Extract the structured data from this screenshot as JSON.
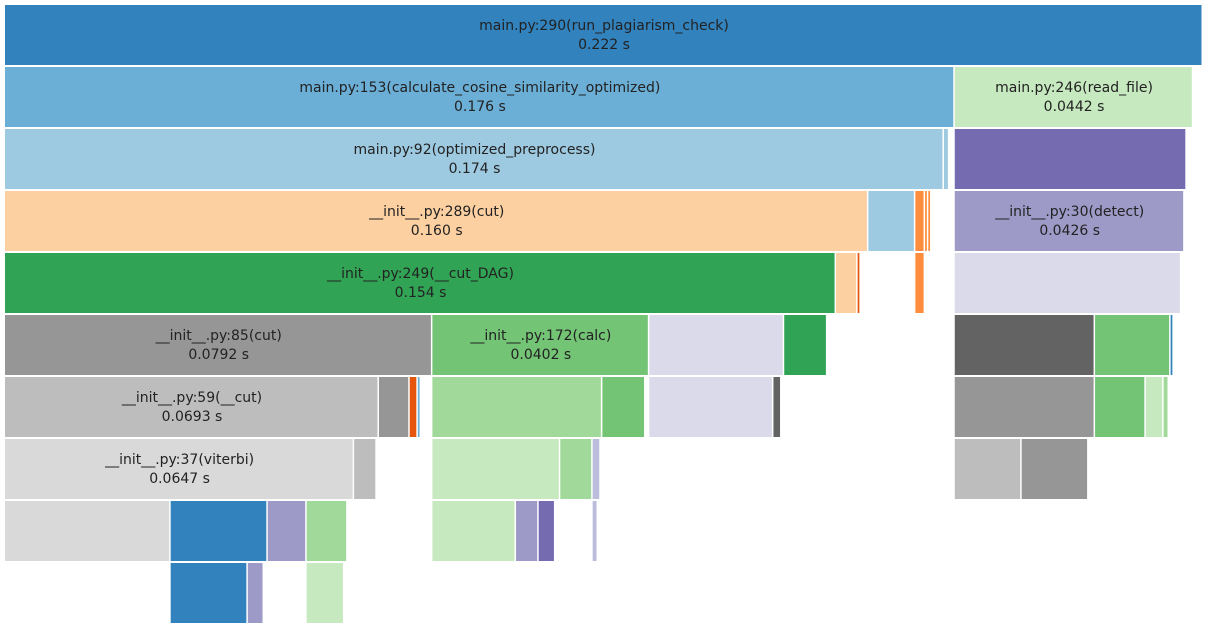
{
  "chart_data": {
    "type": "icicle",
    "root": {
      "name": "main.py:290(run_plagiarism_check)",
      "value": 0.222,
      "value_label": "0.222 s",
      "color": "#3182bd",
      "children": [
        {
          "name": "main.py:153(calculate_cosine_similarity_optimized)",
          "value": 0.176,
          "value_label": "0.176 s",
          "color": "#6baed6",
          "children": [
            {
              "name": "main.py:92(optimized_preprocess)",
              "value": 0.174,
              "value_label": "0.174 s",
              "color": "#9ecae1",
              "children": [
                {
                  "name": "__init__.py:289(cut)",
                  "value": 0.16,
                  "value_label": "0.160 s",
                  "color": "#fdd0a2",
                  "children": [
                    {
                      "name": "__init__.py:249(__cut_DAG)",
                      "value": 0.154,
                      "value_label": "0.154 s",
                      "color": "#31a354",
                      "children": [
                        {
                          "name": "__init__.py:85(cut)",
                          "value": 0.0792,
                          "value_label": "0.0792 s",
                          "color": "#969696",
                          "children": [
                            {
                              "name": "__init__.py:59(__cut)",
                              "value": 0.0693,
                              "value_label": "0.0693 s",
                              "color": "#bdbdbd",
                              "children": [
                                {
                                  "name": "__init__.py:37(viterbi)",
                                  "value": 0.0647,
                                  "value_label": "0.0647 s",
                                  "color": "#d9d9d9",
                                  "children": [
                                    {
                                      "value": 0.0307,
                                      "color": "#d9d9d9"
                                    },
                                    {
                                      "value": 0.018,
                                      "color": "#3182bd",
                                      "children": [
                                        {
                                          "value": 0.0143,
                                          "color": "#3182bd"
                                        },
                                        {
                                          "value": 0.003,
                                          "color": "#9e9ac8"
                                        }
                                      ]
                                    },
                                    {
                                      "value": 0.0072,
                                      "color": "#9e9ac8"
                                    },
                                    {
                                      "value": 0.0076,
                                      "color": "#a1d99b",
                                      "children": [
                                        {
                                          "value": 0.007,
                                          "color": "#c7e9c0"
                                        }
                                      ]
                                    }
                                  ]
                                },
                                {
                                  "value": 0.0042,
                                  "color": "#bdbdbd"
                                }
                              ]
                            },
                            {
                              "value": 0.0057,
                              "color": "#969696"
                            },
                            {
                              "value": 0.0015,
                              "color": "#e6550d"
                            },
                            {
                              "value": 0.0006,
                              "color": "#6baed6"
                            }
                          ]
                        },
                        {
                          "name": "__init__.py:172(calc)",
                          "value": 0.0402,
                          "value_label": "0.0402 s",
                          "color": "#74c476",
                          "children": [
                            {
                              "value": 0.0315,
                              "color": "#a1d99b",
                              "children": [
                                {
                                  "value": 0.0237,
                                  "color": "#c7e9c0",
                                  "children": [
                                    {
                                      "value": 0.0155,
                                      "color": "#c7e9c0"
                                    },
                                    {
                                      "value": 0.0042,
                                      "color": "#9e9ac8"
                                    },
                                    {
                                      "value": 0.0031,
                                      "color": "#756bb1"
                                    }
                                  ]
                                },
                                {
                                  "value": 0.006,
                                  "color": "#a1d99b"
                                },
                                {
                                  "value": 0.0015,
                                  "color": "#bcbddc",
                                  "children": [
                                    {
                                      "value": 0.001,
                                      "color": "#bcbddc"
                                    }
                                  ]
                                }
                              ]
                            },
                            {
                              "value": 0.008,
                              "color": "#74c476"
                            }
                          ]
                        },
                        {
                          "value": 0.025,
                          "color": "#dadaeb",
                          "children": [
                            {
                              "value": 0.023,
                              "color": "#dadaeb"
                            },
                            {
                              "value": 0.0015,
                              "color": "#636363"
                            }
                          ]
                        },
                        {
                          "value": 0.008,
                          "color": "#31a354"
                        }
                      ]
                    },
                    {
                      "value": 0.004,
                      "color": "#fdd0a2"
                    },
                    {
                      "value": 0.0006,
                      "color": "#e6550d"
                    }
                  ]
                },
                {
                  "value": 0.0087,
                  "color": "#9ecae1"
                },
                {
                  "value": 0.0018,
                  "color": "#fd8d3c",
                  "children": [
                    {
                      "value": 0.0018,
                      "color": "#fd8d3c"
                    }
                  ]
                },
                {
                  "value": 0.0006,
                  "color": "#fd8d3c"
                },
                {
                  "value": 0.0006,
                  "color": "#fd8d3c"
                }
              ]
            },
            {
              "value": 0.001,
              "color": "#9ecae1"
            }
          ]
        },
        {
          "name": "main.py:246(read_file)",
          "value": 0.0442,
          "value_label": "0.0442 s",
          "color": "#c7e9c0",
          "children": [
            {
              "value": 0.043,
              "color": "#756bb1",
              "children": [
                {
                  "name": "__init__.py:30(detect)",
                  "value": 0.0426,
                  "value_label": "0.0426 s",
                  "color": "#9e9ac8",
                  "children": [
                    {
                      "value": 0.042,
                      "color": "#dadaeb",
                      "children": [
                        {
                          "value": 0.026,
                          "color": "#636363",
                          "children": [
                            {
                              "value": 0.026,
                              "color": "#969696",
                              "children": [
                                {
                                  "value": 0.0124,
                                  "color": "#bdbdbd"
                                },
                                {
                                  "value": 0.0124,
                                  "color": "#969696"
                                }
                              ]
                            }
                          ]
                        },
                        {
                          "value": 0.014,
                          "color": "#74c476",
                          "children": [
                            {
                              "value": 0.0094,
                              "color": "#74c476"
                            },
                            {
                              "value": 0.0033,
                              "color": "#c7e9c0"
                            },
                            {
                              "value": 0.001,
                              "color": "#a1d99b"
                            }
                          ]
                        },
                        {
                          "value": 0.0006,
                          "color": "#3182bd"
                        }
                      ]
                    }
                  ]
                }
              ]
            }
          ]
        }
      ]
    }
  }
}
